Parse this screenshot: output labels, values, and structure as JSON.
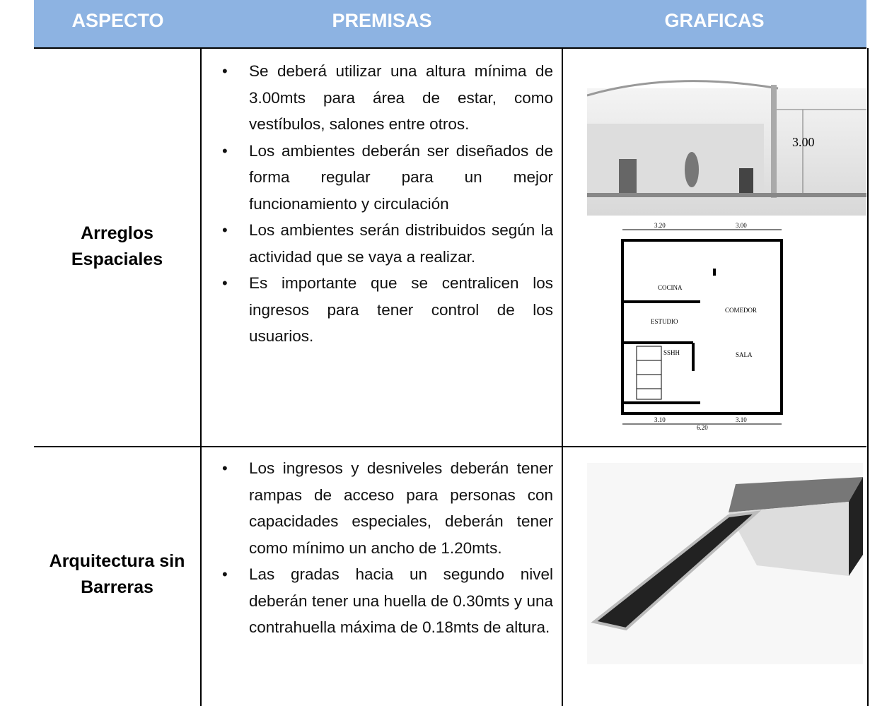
{
  "table": {
    "header": [
      "ASPECTO",
      "PREMISAS",
      "GRAFICAS"
    ],
    "rows": [
      {
        "aspect": "Arreglos\nEspaciales",
        "premises": [
          "Se deberá utilizar una altura mínima de 3.00mts para área de estar, como vestíbulos, salones entre otros.",
          "Los ambientes deberán ser diseñados de forma regular para un mejor funcionamiento y circulación",
          "Los ambientes serán distribuidos según la actividad que se vaya a realizar.",
          "Es importante que se centralicen los ingresos para tener control de los usuarios."
        ],
        "graphic_labels": {
          "section_height": "3.00",
          "rooms": [
            "COCINA",
            "ESTUDIO",
            "COMEDOR",
            "SALA",
            "SSHH"
          ],
          "dimensions": [
            "3.20",
            "3.00",
            "3.10",
            "3.10",
            "6.20"
          ]
        }
      },
      {
        "aspect": "Arquitectura sin\nBarreras",
        "premises": [
          "Los ingresos y desniveles deberán tener rampas de acceso para personas con capacidades especiales, deberán tener como mínimo un ancho de 1.20mts.",
          "Las gradas hacia un segundo nivel deberán tener una huella de 0.30mts y una contrahuella máxima de 0.18mts de altura."
        ]
      }
    ]
  }
}
